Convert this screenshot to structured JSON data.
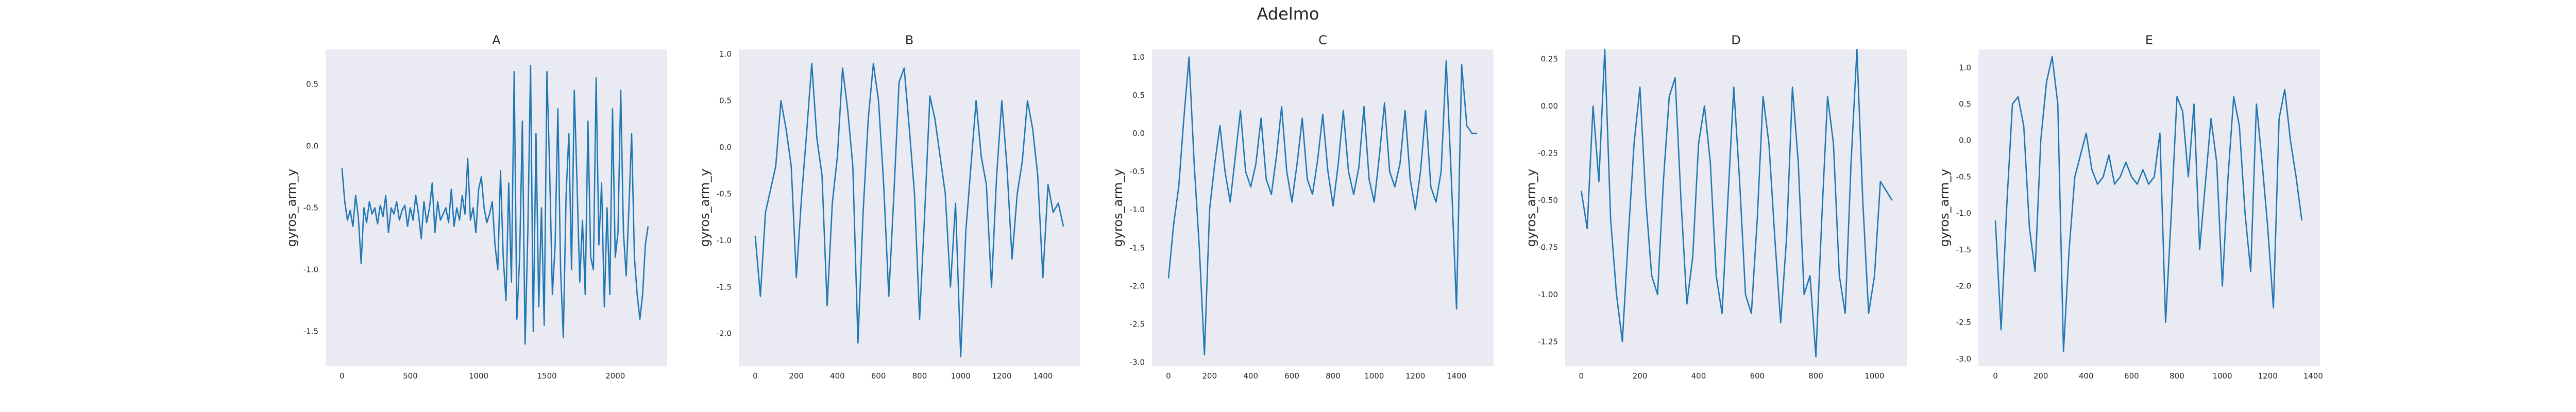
{
  "figure": {
    "title": "Adelmo"
  },
  "colors": {
    "line": "#1f77b4",
    "panel_background": "#eaeaf2"
  },
  "chart_data": [
    {
      "type": "line",
      "title": "A",
      "xlabel": "",
      "ylabel": "gyros_arm_y",
      "xlim": [
        -120,
        2380
      ],
      "ylim": [
        -1.78,
        0.78
      ],
      "grid": false,
      "xticks": [
        0,
        500,
        1000,
        1500,
        2000
      ],
      "yticks": [
        -1.5,
        -1.0,
        -0.5,
        0.0,
        0.5
      ],
      "xticklabels": [
        "0",
        "500",
        "1000",
        "1500",
        "2000"
      ],
      "yticklabels": [
        "-1.5",
        "-1.0",
        "-0.5",
        "0.0",
        "0.5"
      ],
      "series": [
        {
          "x": [
            0,
            20,
            40,
            60,
            80,
            100,
            120,
            140,
            160,
            180,
            200,
            220,
            240,
            260,
            280,
            300,
            320,
            340,
            360,
            380,
            400,
            420,
            440,
            460,
            480,
            500,
            520,
            540,
            560,
            580,
            600,
            620,
            640,
            660,
            680,
            700,
            720,
            740,
            760,
            780,
            800,
            820,
            840,
            860,
            880,
            900,
            920,
            940,
            960,
            980,
            1000,
            1020,
            1040,
            1060,
            1080,
            1100,
            1120,
            1140,
            1160,
            1180,
            1200,
            1220,
            1240,
            1260,
            1280,
            1300,
            1320,
            1340,
            1360,
            1380,
            1400,
            1420,
            1440,
            1460,
            1480,
            1500,
            1520,
            1540,
            1560,
            1580,
            1600,
            1620,
            1640,
            1660,
            1680,
            1700,
            1720,
            1740,
            1760,
            1780,
            1800,
            1820,
            1840,
            1860,
            1880,
            1900,
            1920,
            1940,
            1960,
            1980,
            2000,
            2020,
            2040,
            2060,
            2080,
            2100,
            2120,
            2140,
            2160,
            2180,
            2200,
            2220,
            2240
          ],
          "y": [
            -0.18,
            -0.45,
            -0.6,
            -0.52,
            -0.65,
            -0.4,
            -0.58,
            -0.95,
            -0.5,
            -0.62,
            -0.45,
            -0.55,
            -0.5,
            -0.63,
            -0.48,
            -0.57,
            -0.4,
            -0.7,
            -0.5,
            -0.55,
            -0.45,
            -0.6,
            -0.52,
            -0.48,
            -0.65,
            -0.5,
            -0.6,
            -0.4,
            -0.55,
            -0.75,
            -0.45,
            -0.62,
            -0.5,
            -0.3,
            -0.7,
            -0.45,
            -0.6,
            -0.55,
            -0.5,
            -0.62,
            -0.35,
            -0.65,
            -0.5,
            -0.6,
            -0.4,
            -0.55,
            -0.1,
            -0.6,
            -0.5,
            -0.7,
            -0.35,
            -0.25,
            -0.5,
            -0.62,
            -0.55,
            -0.45,
            -0.8,
            -1.0,
            -0.2,
            -0.9,
            -1.25,
            -0.3,
            -1.1,
            0.6,
            -1.4,
            -0.9,
            0.2,
            -1.6,
            -0.7,
            0.65,
            -1.5,
            0.1,
            -1.3,
            -0.5,
            -1.45,
            0.6,
            -0.2,
            -1.2,
            -0.8,
            0.3,
            -1.0,
            -1.55,
            -0.4,
            0.1,
            -1.0,
            0.45,
            -0.3,
            -1.1,
            -0.6,
            -1.2,
            0.2,
            -0.9,
            -1.0,
            0.55,
            -0.8,
            -0.3,
            -1.3,
            -0.5,
            -1.2,
            0.3,
            -0.9,
            -0.7,
            0.45,
            -0.7,
            -1.05,
            -0.5,
            0.1,
            -0.9,
            -1.2,
            -1.4,
            -1.2,
            -0.8,
            -0.65
          ]
        }
      ]
    },
    {
      "type": "line",
      "title": "B",
      "xlabel": "",
      "ylabel": "gyros_arm_y",
      "xlim": [
        -80,
        1580
      ],
      "ylim": [
        -2.35,
        1.05
      ],
      "grid": false,
      "xticks": [
        0,
        200,
        400,
        600,
        800,
        1000,
        1200,
        1400
      ],
      "yticks": [
        -2.0,
        -1.5,
        -1.0,
        -0.5,
        0.0,
        0.5,
        1.0
      ],
      "xticklabels": [
        "0",
        "200",
        "400",
        "600",
        "800",
        "1000",
        "1200",
        "1400"
      ],
      "yticklabels": [
        "-2.0",
        "-1.5",
        "-1.0",
        "-0.5",
        "0.0",
        "0.5",
        "1.0"
      ],
      "series": [
        {
          "x": [
            0,
            25,
            50,
            75,
            100,
            125,
            150,
            175,
            200,
            225,
            250,
            275,
            300,
            325,
            350,
            375,
            400,
            425,
            450,
            475,
            500,
            525,
            550,
            575,
            600,
            625,
            650,
            675,
            700,
            725,
            750,
            775,
            800,
            825,
            850,
            875,
            900,
            925,
            950,
            975,
            1000,
            1025,
            1050,
            1075,
            1100,
            1125,
            1150,
            1175,
            1200,
            1225,
            1250,
            1275,
            1300,
            1325,
            1350,
            1375,
            1400,
            1425,
            1450,
            1475,
            1500
          ],
          "y": [
            -0.95,
            -1.6,
            -0.7,
            -0.45,
            -0.2,
            0.5,
            0.2,
            -0.2,
            -1.4,
            -0.55,
            0.15,
            0.9,
            0.1,
            -0.3,
            -1.7,
            -0.6,
            -0.1,
            0.85,
            0.4,
            -0.2,
            -2.1,
            -0.7,
            0.3,
            0.9,
            0.5,
            -0.4,
            -1.6,
            -0.5,
            0.7,
            0.85,
            0.2,
            -0.5,
            -1.85,
            -0.7,
            0.55,
            0.3,
            -0.1,
            -0.5,
            -1.5,
            -0.6,
            -2.25,
            -0.9,
            -0.2,
            0.5,
            -0.1,
            -0.4,
            -1.5,
            -0.3,
            0.5,
            -0.2,
            -1.2,
            -0.5,
            -0.15,
            0.5,
            0.2,
            -0.3,
            -1.4,
            -0.4,
            -0.7,
            -0.6,
            -0.85
          ]
        }
      ]
    },
    {
      "type": "line",
      "title": "C",
      "xlabel": "",
      "ylabel": "gyros_arm_y",
      "xlim": [
        -80,
        1580
      ],
      "ylim": [
        -3.05,
        1.1
      ],
      "grid": false,
      "xticks": [
        0,
        200,
        400,
        600,
        800,
        1000,
        1200,
        1400
      ],
      "yticks": [
        -3.0,
        -2.5,
        -2.0,
        -1.5,
        -1.0,
        -0.5,
        0.0,
        0.5,
        1.0
      ],
      "xticklabels": [
        "0",
        "200",
        "400",
        "600",
        "800",
        "1000",
        "1200",
        "1400"
      ],
      "yticklabels": [
        "-3.0",
        "-2.5",
        "-2.0",
        "-1.5",
        "-1.0",
        "-0.5",
        "0.0",
        "0.5",
        "1.0"
      ],
      "series": [
        {
          "x": [
            0,
            25,
            50,
            75,
            100,
            125,
            150,
            175,
            200,
            225,
            250,
            275,
            300,
            325,
            350,
            375,
            400,
            425,
            450,
            475,
            500,
            525,
            550,
            575,
            600,
            625,
            650,
            675,
            700,
            725,
            750,
            775,
            800,
            825,
            850,
            875,
            900,
            925,
            950,
            975,
            1000,
            1025,
            1050,
            1075,
            1100,
            1125,
            1150,
            1175,
            1200,
            1225,
            1250,
            1275,
            1300,
            1325,
            1350,
            1375,
            1400,
            1425,
            1450,
            1475,
            1500
          ],
          "y": [
            -1.9,
            -1.2,
            -0.7,
            0.2,
            1.0,
            -0.4,
            -1.5,
            -2.9,
            -1.0,
            -0.4,
            0.1,
            -0.5,
            -0.9,
            -0.3,
            0.3,
            -0.5,
            -0.7,
            -0.4,
            0.2,
            -0.6,
            -0.8,
            -0.3,
            0.35,
            -0.5,
            -0.9,
            -0.4,
            0.2,
            -0.6,
            -0.8,
            -0.35,
            0.25,
            -0.5,
            -0.95,
            -0.4,
            0.3,
            -0.5,
            -0.8,
            -0.45,
            0.35,
            -0.6,
            -0.9,
            -0.3,
            0.4,
            -0.5,
            -0.7,
            -0.4,
            0.3,
            -0.6,
            -1.0,
            -0.5,
            0.3,
            -0.7,
            -0.9,
            -0.5,
            0.95,
            -0.6,
            -2.3,
            0.9,
            0.1,
            0.0,
            0.0
          ]
        }
      ]
    },
    {
      "type": "line",
      "title": "D",
      "xlabel": "",
      "ylabel": "gyros_arm_y",
      "xlim": [
        -55,
        1110
      ],
      "ylim": [
        -1.38,
        0.3
      ],
      "grid": false,
      "xticks": [
        0,
        200,
        400,
        600,
        800,
        1000
      ],
      "yticks": [
        -1.25,
        -1.0,
        -0.75,
        -0.5,
        -0.25,
        0.0,
        0.25
      ],
      "xticklabels": [
        "0",
        "200",
        "400",
        "600",
        "800",
        "1000"
      ],
      "yticklabels": [
        "-1.25",
        "-1.00",
        "-0.75",
        "-0.50",
        "-0.25",
        "0.00",
        "0.25"
      ],
      "series": [
        {
          "x": [
            0,
            20,
            40,
            60,
            80,
            100,
            120,
            140,
            160,
            180,
            200,
            220,
            240,
            260,
            280,
            300,
            320,
            340,
            360,
            380,
            400,
            420,
            440,
            460,
            480,
            500,
            520,
            540,
            560,
            580,
            600,
            620,
            640,
            660,
            680,
            700,
            720,
            740,
            760,
            780,
            800,
            820,
            840,
            860,
            880,
            900,
            920,
            940,
            960,
            980,
            1000,
            1020,
            1040,
            1060
          ],
          "y": [
            -0.45,
            -0.65,
            0.0,
            -0.4,
            0.3,
            -0.6,
            -1.0,
            -1.25,
            -0.7,
            -0.2,
            0.1,
            -0.5,
            -0.9,
            -1.0,
            -0.4,
            0.05,
            0.15,
            -0.5,
            -1.05,
            -0.8,
            -0.2,
            0.0,
            -0.3,
            -0.9,
            -1.1,
            -0.5,
            0.1,
            -0.4,
            -1.0,
            -1.1,
            -0.6,
            0.05,
            -0.2,
            -0.7,
            -1.15,
            -0.7,
            0.1,
            -0.3,
            -1.0,
            -0.9,
            -1.33,
            -0.6,
            0.05,
            -0.2,
            -0.9,
            -1.1,
            -0.3,
            0.3,
            -0.5,
            -1.1,
            -0.9,
            -0.4,
            -0.45,
            -0.5
          ]
        }
      ]
    },
    {
      "type": "line",
      "title": "E",
      "xlabel": "",
      "ylabel": "gyros_arm_y",
      "xlim": [
        -75,
        1430
      ],
      "ylim": [
        -3.1,
        1.25
      ],
      "grid": false,
      "xticks": [
        0,
        200,
        400,
        600,
        800,
        1000,
        1200,
        1400
      ],
      "yticks": [
        -3.0,
        -2.5,
        -2.0,
        -1.5,
        -1.0,
        -0.5,
        0.0,
        0.5,
        1.0
      ],
      "xticklabels": [
        "0",
        "200",
        "400",
        "600",
        "800",
        "1000",
        "1200",
        "1400"
      ],
      "yticklabels": [
        "-3.0",
        "-2.5",
        "-2.0",
        "-1.5",
        "-1.0",
        "-0.5",
        "0.0",
        "0.5",
        "1.0"
      ],
      "series": [
        {
          "x": [
            0,
            25,
            50,
            75,
            100,
            125,
            150,
            175,
            200,
            225,
            250,
            275,
            300,
            325,
            350,
            375,
            400,
            425,
            450,
            475,
            500,
            525,
            550,
            575,
            600,
            625,
            650,
            675,
            700,
            725,
            750,
            775,
            800,
            825,
            850,
            875,
            900,
            925,
            950,
            975,
            1000,
            1025,
            1050,
            1075,
            1100,
            1125,
            1150,
            1175,
            1200,
            1225,
            1250,
            1275,
            1300,
            1325,
            1350
          ],
          "y": [
            -1.1,
            -2.6,
            -0.9,
            0.5,
            0.6,
            0.2,
            -1.2,
            -1.8,
            0.0,
            0.8,
            1.15,
            0.5,
            -2.9,
            -1.5,
            -0.5,
            -0.2,
            0.1,
            -0.4,
            -0.6,
            -0.5,
            -0.2,
            -0.6,
            -0.5,
            -0.3,
            -0.5,
            -0.6,
            -0.4,
            -0.6,
            -0.5,
            0.1,
            -2.5,
            -1.0,
            0.6,
            0.4,
            -0.5,
            0.5,
            -1.5,
            -0.6,
            0.3,
            -0.3,
            -2.0,
            -0.5,
            0.6,
            0.2,
            -1.0,
            -1.8,
            0.5,
            -0.3,
            -1.2,
            -2.3,
            0.3,
            0.7,
            0.0,
            -0.5,
            -1.1
          ]
        }
      ]
    }
  ]
}
